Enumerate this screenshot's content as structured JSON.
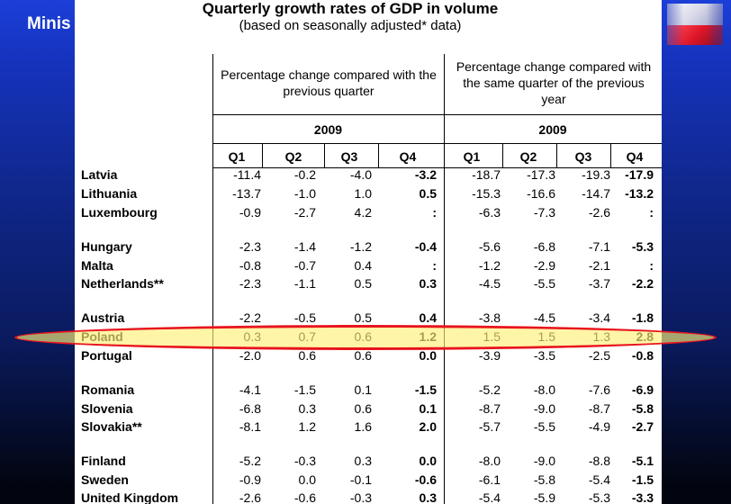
{
  "header": {
    "ministry_label": "Minis"
  },
  "table": {
    "title": "Quarterly growth rates of GDP in volume",
    "subtitle": "(based on seasonally adjusted* data)",
    "groups": [
      {
        "label": "Percentage change compared with the previous quarter",
        "year": "2009"
      },
      {
        "label": "Percentage change compared with the same quarter of the previous year",
        "year": "2009"
      }
    ],
    "quarters": [
      "Q1",
      "Q2",
      "Q3",
      "Q4",
      "Q1",
      "Q2",
      "Q3",
      "Q4"
    ],
    "rows": [
      {
        "country": "Latvia",
        "values": [
          "-11.4",
          "-0.2",
          "-4.0",
          "-3.2",
          "-18.7",
          "-17.3",
          "-19.3",
          "-17.9"
        ]
      },
      {
        "country": "Lithuania",
        "values": [
          "-13.7",
          "-1.0",
          "1.0",
          "0.5",
          "-15.3",
          "-16.6",
          "-14.7",
          "-13.2"
        ]
      },
      {
        "country": "Luxembourg",
        "values": [
          "-0.9",
          "-2.7",
          "4.2",
          ":",
          "-6.3",
          "-7.3",
          "-2.6",
          ":"
        ]
      },
      {
        "country": "Hungary",
        "values": [
          "-2.3",
          "-1.4",
          "-1.2",
          "-0.4",
          "-5.6",
          "-6.8",
          "-7.1",
          "-5.3"
        ]
      },
      {
        "country": "Malta",
        "values": [
          "-0.8",
          "-0.7",
          "0.4",
          ":",
          "-1.2",
          "-2.9",
          "-2.1",
          ":"
        ]
      },
      {
        "country": "Netherlands**",
        "values": [
          "-2.3",
          "-1.1",
          "0.5",
          "0.3",
          "-4.5",
          "-5.5",
          "-3.7",
          "-2.2"
        ]
      },
      {
        "country": "Austria",
        "values": [
          "-2.2",
          "-0.5",
          "0.5",
          "0.4",
          "-3.8",
          "-4.5",
          "-3.4",
          "-1.8"
        ]
      },
      {
        "country": "Poland",
        "values": [
          "0.3",
          "0.7",
          "0.6",
          "1.2",
          "1.5",
          "1.5",
          "1.3",
          "2.8"
        ]
      },
      {
        "country": "Portugal",
        "values": [
          "-2.0",
          "0.6",
          "0.6",
          "0.0",
          "-3.9",
          "-3.5",
          "-2.5",
          "-0.8"
        ]
      },
      {
        "country": "Romania",
        "values": [
          "-4.1",
          "-1.5",
          "0.1",
          "-1.5",
          "-5.2",
          "-8.0",
          "-7.6",
          "-6.9"
        ]
      },
      {
        "country": "Slovenia",
        "values": [
          "-6.8",
          "0.3",
          "0.6",
          "0.1",
          "-8.7",
          "-9.0",
          "-8.7",
          "-5.8"
        ]
      },
      {
        "country": "Slovakia**",
        "values": [
          "-8.1",
          "1.2",
          "1.6",
          "2.0",
          "-5.7",
          "-5.5",
          "-4.9",
          "-2.7"
        ]
      },
      {
        "country": "Finland",
        "values": [
          "-5.2",
          "-0.3",
          "0.3",
          "0.0",
          "-8.0",
          "-9.0",
          "-8.8",
          "-5.1"
        ]
      },
      {
        "country": "Sweden",
        "values": [
          "-0.9",
          "0.0",
          "-0.1",
          "-0.6",
          "-6.1",
          "-5.8",
          "-5.4",
          "-1.5"
        ]
      },
      {
        "country": "United Kingdom",
        "values": [
          "-2.6",
          "-0.6",
          "-0.3",
          "0.3",
          "-5.4",
          "-5.9",
          "-5.3",
          "-3.3"
        ]
      }
    ],
    "highlighted_country": "Poland"
  },
  "colors": {
    "background": "#1634c0",
    "highlight_border": "#e8141e",
    "highlight_fill": "#fff078"
  }
}
